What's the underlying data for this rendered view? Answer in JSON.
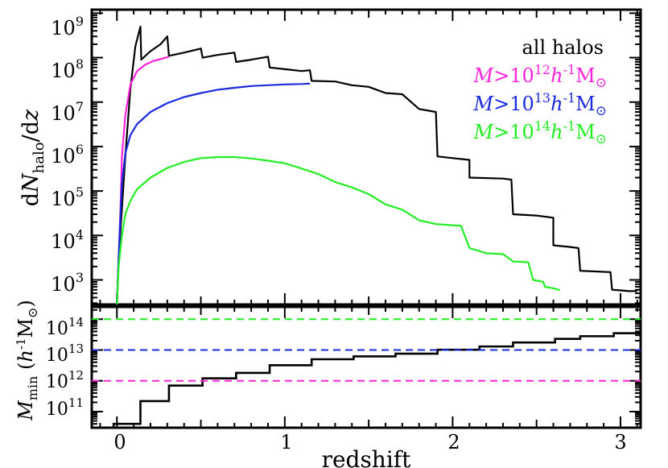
{
  "chart_data": [
    {
      "type": "line",
      "ylabel": "dN_halo/dz",
      "yscale": "log",
      "xlim": [
        -0.15,
        3.12
      ],
      "ylim": [
        280,
        1200000000
      ],
      "y_tick_labels": [
        "10^3",
        "10^4",
        "10^5",
        "10^6",
        "10^7",
        "10^8",
        "10^9"
      ],
      "legend_placement": "top-right",
      "series": [
        {
          "name": "all halos",
          "color": "#000000",
          "points": [
            [
              0.0,
              280
            ],
            [
              0.01,
              3000
            ],
            [
              0.03,
              40000
            ],
            [
              0.05,
              600000
            ],
            [
              0.08,
              20000000
            ],
            [
              0.11,
              180000000
            ],
            [
              0.14,
              500000000
            ],
            [
              0.145,
              90000000
            ],
            [
              0.2,
              140000000
            ],
            [
              0.26,
              200000000
            ],
            [
              0.3,
              300000000
            ],
            [
              0.31,
              110000000
            ],
            [
              0.4,
              130000000
            ],
            [
              0.5,
              160000000
            ],
            [
              0.51,
              100000000
            ],
            [
              0.6,
              115000000
            ],
            [
              0.7,
              130000000
            ],
            [
              0.71,
              80000000
            ],
            [
              0.8,
              90000000
            ],
            [
              0.9,
              105000000
            ],
            [
              0.91,
              60000000
            ],
            [
              1.0,
              55000000
            ],
            [
              1.1,
              50000000
            ],
            [
              1.15,
              52000000
            ],
            [
              1.16,
              30000000
            ],
            [
              1.3,
              29000000
            ],
            [
              1.4,
              24000000
            ],
            [
              1.5,
              22000000
            ],
            [
              1.6,
              16000000
            ],
            [
              1.7,
              15000000
            ],
            [
              1.8,
              7000000
            ],
            [
              1.9,
              6000000
            ],
            [
              1.91,
              600000
            ],
            [
              2.0,
              550000
            ],
            [
              2.1,
              500000
            ],
            [
              2.1,
              200000
            ],
            [
              2.3,
              190000
            ],
            [
              2.35,
              180000
            ],
            [
              2.36,
              30000
            ],
            [
              2.5,
              28000
            ],
            [
              2.6,
              25000
            ],
            [
              2.6,
              6000
            ],
            [
              2.7,
              5500
            ],
            [
              2.75,
              5200
            ],
            [
              2.76,
              1600
            ],
            [
              2.85,
              1550
            ],
            [
              2.94,
              1500
            ],
            [
              2.95,
              600
            ],
            [
              3.0,
              580
            ],
            [
              3.05,
              560
            ],
            [
              3.1,
              560
            ]
          ]
        },
        {
          "name": "M>10^12 h^-1 M_sun",
          "color": "#ff22dd",
          "points": [
            [
              0.0,
              280
            ],
            [
              0.01,
              3000
            ],
            [
              0.02,
              30000
            ],
            [
              0.03,
              600000
            ],
            [
              0.05,
              5000000
            ],
            [
              0.08,
              25000000
            ],
            [
              0.12,
              50000000
            ],
            [
              0.17,
              70000000
            ],
            [
              0.22,
              85000000
            ],
            [
              0.27,
              95000000
            ],
            [
              0.31,
              105000000
            ]
          ]
        },
        {
          "name": "M>10^13 h^-1 M_sun",
          "color": "#1a2bdd",
          "points": [
            [
              0.0,
              280
            ],
            [
              0.01,
              3000
            ],
            [
              0.02,
              25000
            ],
            [
              0.03,
              150000
            ],
            [
              0.05,
              700000
            ],
            [
              0.08,
              1800000
            ],
            [
              0.12,
              3200000
            ],
            [
              0.2,
              6000000
            ],
            [
              0.3,
              9500000
            ],
            [
              0.4,
              13000000
            ],
            [
              0.5,
              16000000
            ],
            [
              0.6,
              19000000
            ],
            [
              0.7,
              21000000
            ],
            [
              0.8,
              23000000
            ],
            [
              0.9,
              24000000
            ],
            [
              1.0,
              25000000
            ],
            [
              1.1,
              25500000
            ],
            [
              1.15,
              26000000
            ]
          ]
        },
        {
          "name": "M>10^14 h^-1 M_sun",
          "color": "#22ee22",
          "points": [
            [
              0.0,
              280
            ],
            [
              0.01,
              2000
            ],
            [
              0.03,
              10000
            ],
            [
              0.05,
              30000
            ],
            [
              0.08,
              60000
            ],
            [
              0.12,
              110000
            ],
            [
              0.2,
              200000
            ],
            [
              0.3,
              330000
            ],
            [
              0.4,
              450000
            ],
            [
              0.5,
              550000
            ],
            [
              0.6,
              580000
            ],
            [
              0.7,
              580000
            ],
            [
              0.8,
              540000
            ],
            [
              0.9,
              480000
            ],
            [
              1.0,
              420000
            ],
            [
              1.1,
              320000
            ],
            [
              1.2,
              240000
            ],
            [
              1.3,
              160000
            ],
            [
              1.4,
              120000
            ],
            [
              1.5,
              85000
            ],
            [
              1.6,
              50000
            ],
            [
              1.7,
              38000
            ],
            [
              1.8,
              22000
            ],
            [
              1.9,
              18000
            ],
            [
              2.0,
              17000
            ],
            [
              2.05,
              16500
            ],
            [
              2.1,
              5200
            ],
            [
              2.2,
              4000
            ],
            [
              2.3,
              3800
            ],
            [
              2.36,
              2600
            ],
            [
              2.45,
              2500
            ],
            [
              2.48,
              1000
            ],
            [
              2.54,
              900
            ],
            [
              2.55,
              700
            ],
            [
              2.6,
              650
            ],
            [
              2.63,
              600
            ],
            [
              2.64,
              600
            ]
          ]
        }
      ]
    },
    {
      "type": "line",
      "xlabel": "redshift",
      "ylabel": "M_min (h^-1 M_sun)",
      "yscale": "log",
      "xlim": [
        -0.15,
        3.12
      ],
      "ylim": [
        30000000000,
        250000000000000
      ],
      "x_tick_labels": [
        "0",
        "1",
        "2",
        "3"
      ],
      "y_tick_labels": [
        "10^11",
        "10^12",
        "10^13",
        "10^14"
      ],
      "series": [
        {
          "name": "M_min",
          "color": "#000000",
          "steps": [
            [
              -0.02,
              40000000000
            ],
            [
              0.14,
              220000000000
            ],
            [
              0.31,
              700000000000
            ],
            [
              0.51,
              1200000000000
            ],
            [
              0.71,
              1800000000000
            ],
            [
              0.91,
              3200000000000
            ],
            [
              1.16,
              5000000000000
            ],
            [
              1.41,
              6200000000000
            ],
            [
              1.66,
              7600000000000
            ],
            [
              1.91,
              10200000000000
            ],
            [
              2.16,
              13000000000000
            ],
            [
              2.36,
              17500000000000
            ],
            [
              2.61,
              23000000000000
            ],
            [
              2.76,
              28000000000000
            ],
            [
              2.96,
              35000000000000
            ],
            [
              3.12,
              35000000000000
            ]
          ]
        },
        {
          "name": "10^12 threshold",
          "color": "#ff22dd",
          "dashed": true,
          "value": 1000000000000
        },
        {
          "name": "10^13 threshold",
          "color": "#1a2bdd",
          "dashed": true,
          "value": 10000000000000
        },
        {
          "name": "10^14 threshold",
          "color": "#22ee22",
          "dashed": true,
          "value": 100000000000000
        }
      ]
    }
  ]
}
